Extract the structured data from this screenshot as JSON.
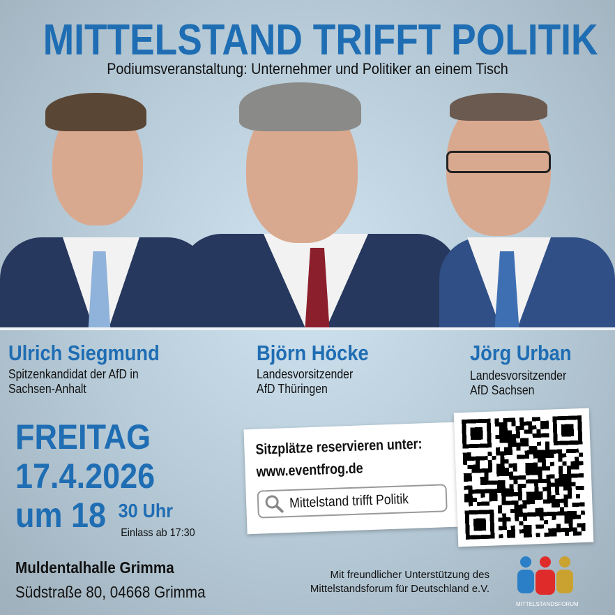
{
  "title": "MITTELSTAND TRIFFT POLITIK",
  "subtitle": "Podiumsveranstaltung: Unternehmer und Politiker an einem Tisch",
  "speakers": [
    {
      "name": "Ulrich Siegmund",
      "role_line1": "Spitzenkandidat der AfD in",
      "role_line2": "Sachsen-Anhalt"
    },
    {
      "name": "Björn Höcke",
      "role_line1": "Landesvorsitzender",
      "role_line2": "AfD Thüringen"
    },
    {
      "name": "Jörg Urban",
      "role_line1": "Landesvorsitzender",
      "role_line2": "AfD Sachsen"
    }
  ],
  "event": {
    "day": "FREITAG",
    "date": "17.4.2026",
    "time_prefix": "um 18",
    "time_minutes": "30 Uhr",
    "admission": "Einlass ab 17:30"
  },
  "venue": {
    "name": "Muldentalhalle Grimma",
    "address": "Südstraße 80, 04668 Grimma"
  },
  "reservation": {
    "heading": "Sitzplätze reservieren unter:",
    "url": "www.eventfrog.de",
    "search_text": "Mittelstand trifft Politik",
    "search_icon": "search-icon"
  },
  "support": {
    "line1": "Mit freundlicher Unterstützung des",
    "line2": "Mittelstandsforum für Deutschland e.V.",
    "logo_text": "MITTELSTANDSFORUM"
  },
  "colors": {
    "accent": "#1f6db3",
    "logo_blue": "#2a7fc6",
    "logo_red": "#e02b2b",
    "logo_gold": "#c9a230"
  }
}
